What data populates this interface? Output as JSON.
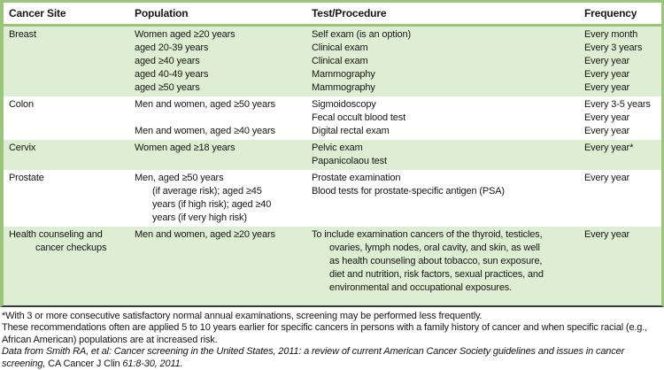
{
  "colors": {
    "border_green": "#9ac57c",
    "row_shade_green": "#deeed3",
    "bottom_rule": "#3b3b3b"
  },
  "header": {
    "columns": [
      "Cancer Site",
      "Population",
      "Test/Procedure",
      "Frequency"
    ]
  },
  "blocks": [
    {
      "shaded": true,
      "rows": [
        {
          "site": "Breast",
          "population": "Women aged ≥20 years",
          "test": "Self exam (is an option)",
          "frequency": "Every month"
        },
        {
          "site": "",
          "population": "aged 20-39 years",
          "test": "Clinical exam",
          "frequency": "Every 3 years"
        },
        {
          "site": "",
          "population": "aged ≥40 years",
          "test": "Clinical exam",
          "frequency": "Every year"
        },
        {
          "site": "",
          "population": "aged 40-49 years",
          "test": "Mammography",
          "frequency": "Every year"
        },
        {
          "site": "",
          "population": "aged ≥50 years",
          "test": "Mammography",
          "frequency": "Every year"
        }
      ]
    },
    {
      "shaded": false,
      "rows": [
        {
          "site": "Colon",
          "population": "Men and women, aged ≥50 years",
          "test": "Sigmoidoscopy",
          "frequency": "Every 3-5 years"
        },
        {
          "site": "",
          "population": "",
          "test": "Fecal occult blood test",
          "frequency": "Every year"
        },
        {
          "site": "",
          "population": "Men and women, aged ≥40 years",
          "test": "Digital rectal exam",
          "frequency": "Every year"
        }
      ]
    },
    {
      "shaded": true,
      "rows": [
        {
          "site": "Cervix",
          "population": "Women aged ≥18 years",
          "test": "Pelvic exam",
          "frequency": "Every year*"
        },
        {
          "site": "",
          "population": "",
          "test": "Papanicolaou test",
          "frequency": ""
        }
      ]
    },
    {
      "shaded": false,
      "rows": [
        {
          "site": "Prostate",
          "population": "Men, aged ≥50 years",
          "test": "Prostate examination",
          "frequency": "Every year"
        },
        {
          "site": "",
          "population": "(if average risk); aged ≥45",
          "population_indent": true,
          "test": "Blood tests for prostate-specific antigen (PSA)",
          "frequency": ""
        },
        {
          "site": "",
          "population": "years (if high risk); aged ≥40",
          "population_indent": true,
          "test": "",
          "frequency": ""
        },
        {
          "site": "",
          "population": "years (if very high risk)",
          "population_indent": true,
          "test": "",
          "frequency": ""
        }
      ]
    },
    {
      "shaded": true,
      "rows": [
        {
          "site": "Health counseling and",
          "population": "Men and women, aged ≥20 years",
          "test": "To include examination cancers of the thyroid, testicles,",
          "frequency": "Every year"
        },
        {
          "site": "cancer checkups",
          "site_indent": true,
          "population": "",
          "test": "ovaries, lymph nodes, oral cavity, and skin, as well",
          "test_indent": true,
          "frequency": ""
        },
        {
          "site": "",
          "population": "",
          "test": "as health counseling about tobacco, sun exposure,",
          "test_indent": true,
          "frequency": ""
        },
        {
          "site": "",
          "population": "",
          "test": "diet and nutrition, risk factors, sexual practices, and",
          "test_indent": true,
          "frequency": ""
        },
        {
          "site": "",
          "population": "",
          "test": "environmental and occupational exposures.",
          "test_indent": true,
          "frequency": ""
        }
      ]
    }
  ],
  "footnotes": [
    [
      {
        "text": "*With 3 or more consecutive satisfactory normal annual examinations, screening may be performed less frequently.",
        "italic": false
      }
    ],
    [
      {
        "text": "These recommendations often are applied 5 to 10 years earlier for specific cancers in persons with a family history of cancer and when specific racial (e.g., African American) populations are at increased risk.",
        "italic": false
      }
    ],
    [
      {
        "text": "Data from Smith RA, et al: Cancer screening in the United States, 2011: a review of current American Cancer Society guidelines and issues in cancer screening, ",
        "italic": true
      },
      {
        "text": "CA Cancer J Clin",
        "italic": false
      },
      {
        "text": " 61:8-30, 2011.",
        "italic": true
      }
    ]
  ]
}
